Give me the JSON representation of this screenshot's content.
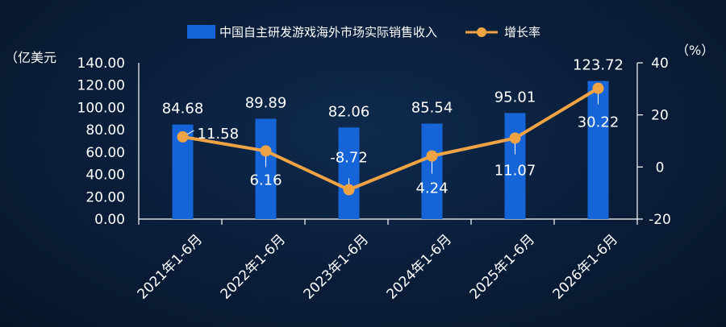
{
  "chart_data": {
    "type": "bar",
    "categories": [
      "2021年1-6月",
      "2022年1-6月",
      "2023年1-6月",
      "2024年1-6月",
      "2025年1-6月",
      "2026年1-6月"
    ],
    "series": [
      {
        "name": "中国自主研发游戏海外市场实际销售收入",
        "type": "bar",
        "axis": "left",
        "values": [
          84.68,
          89.89,
          82.06,
          85.54,
          95.01,
          123.72
        ]
      },
      {
        "name": "增长率",
        "type": "line",
        "axis": "right",
        "values": [
          11.58,
          6.16,
          -8.72,
          4.24,
          11.07,
          30.22
        ]
      }
    ],
    "y_left": {
      "unit_label": "（亿美元",
      "ylim": [
        0,
        140
      ],
      "ticks": [
        "0.00",
        "20.00",
        "40.00",
        "60.00",
        "80.00",
        "100.00",
        "120.00",
        "140.00"
      ]
    },
    "y_right": {
      "unit_label": "（%）",
      "ylim": [
        -20,
        40
      ],
      "ticks": [
        "-20",
        "0",
        "20",
        "40"
      ]
    },
    "bar_labels": [
      "84.68",
      "89.89",
      "82.06",
      "85.54",
      "95.01",
      "123.72"
    ],
    "line_labels": [
      "11.58",
      "6.16",
      "-8.72",
      "4.24",
      "11.07",
      "30.22"
    ],
    "legend_position": "top-center",
    "colors": {
      "bar": "#1565d8",
      "line": "#f0a345",
      "axis": "#ffffff",
      "background": "#0a1d38"
    }
  }
}
